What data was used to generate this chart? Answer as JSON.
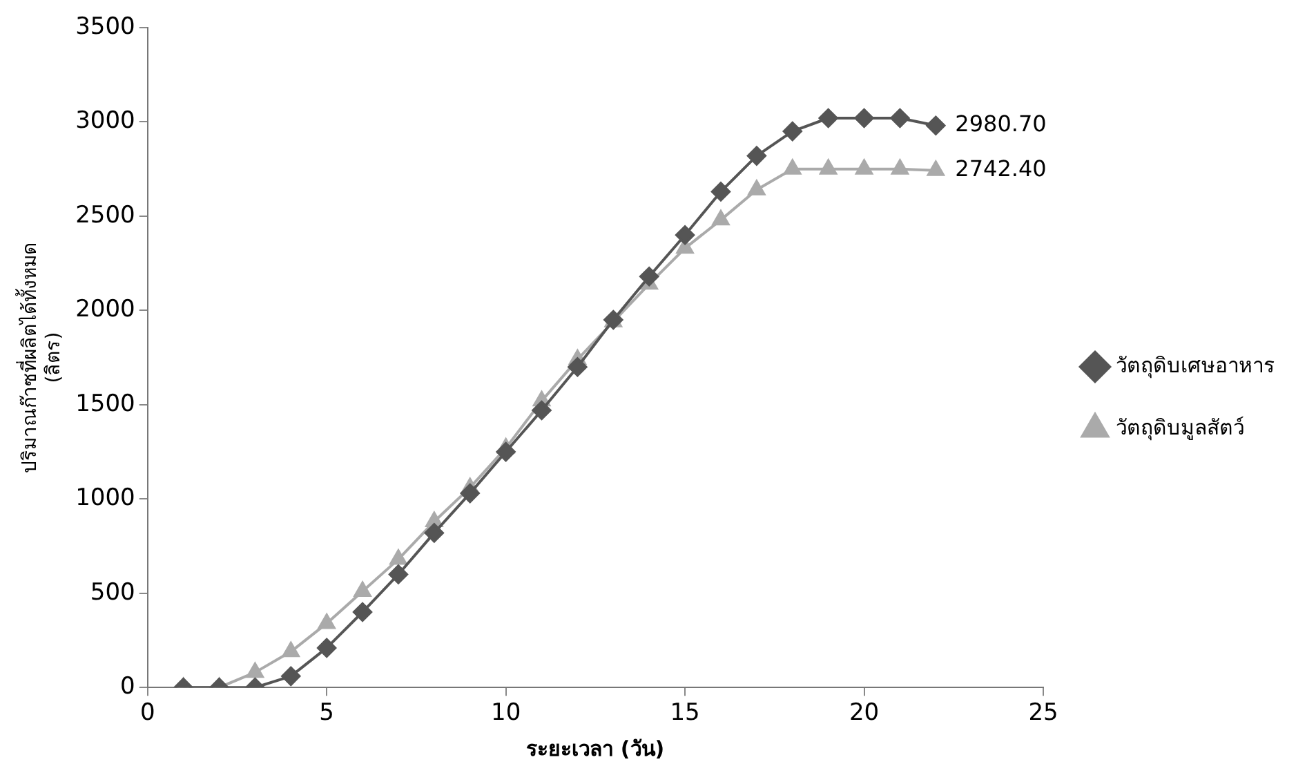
{
  "chart_data": {
    "type": "line",
    "xlabel": "ระยะเวลา (วัน)",
    "ylabel": "ปริมาณก๊าซที่ผลิตได้ทั้งหมด (ลิตร)",
    "x": [
      1,
      2,
      3,
      4,
      5,
      6,
      7,
      8,
      9,
      10,
      11,
      12,
      13,
      14,
      15,
      16,
      17,
      18,
      19,
      20,
      21,
      22
    ],
    "series": [
      {
        "name": "วัตถุดิบเศษอาหาร",
        "color": "#555555",
        "marker": "diamond",
        "values": [
          0,
          0,
          0,
          60,
          210,
          400,
          600,
          820,
          1030,
          1250,
          1470,
          1700,
          1950,
          2180,
          2400,
          2630,
          2820,
          2950,
          3020,
          3020,
          3020,
          2980.7
        ],
        "value_labels": [
          null,
          null,
          null,
          null,
          null,
          null,
          null,
          null,
          null,
          null,
          null,
          null,
          null,
          null,
          null,
          null,
          null,
          null,
          null,
          null,
          null,
          "2980.70"
        ]
      },
      {
        "name": "วัตถุดิบมูลสัตว์",
        "color": "#aaaaaa",
        "marker": "triangle",
        "values": [
          0,
          0,
          80,
          190,
          340,
          510,
          680,
          880,
          1060,
          1270,
          1520,
          1740,
          1940,
          2140,
          2330,
          2480,
          2640,
          2750,
          2750,
          2750,
          2750,
          2742.4
        ],
        "value_labels": [
          null,
          null,
          null,
          null,
          null,
          null,
          null,
          null,
          null,
          null,
          null,
          null,
          null,
          null,
          null,
          null,
          null,
          null,
          null,
          null,
          null,
          "2742.40"
        ]
      }
    ],
    "xlim": [
      0,
      25
    ],
    "xticks": [
      0,
      5,
      10,
      15,
      20,
      25
    ],
    "ylim": [
      0,
      3500
    ],
    "yticks": [
      0,
      500,
      1000,
      1500,
      2000,
      2500,
      3000,
      3500
    ],
    "grid": false,
    "legend": "right"
  }
}
